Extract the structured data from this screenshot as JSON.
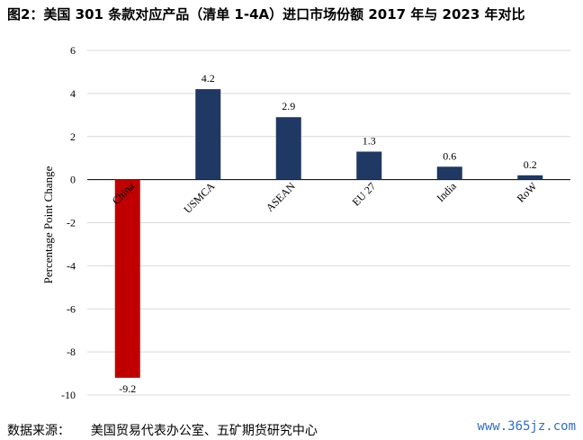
{
  "title": "图2：美国 301 条款对应产品（清单 1-4A）进口市场份额 2017 年与 2023 年对比",
  "source_label": "数据来源：",
  "source_text": "美国贸易代表办公室、五矿期货研究中心",
  "watermark": "www.365jz.com",
  "chart_data": {
    "type": "bar",
    "title": "",
    "xlabel": "",
    "ylabel": "Percentage Point Change",
    "ylim": [
      -10,
      6
    ],
    "yticks": [
      -10,
      -8,
      -6,
      -4,
      -2,
      0,
      2,
      4,
      6
    ],
    "grid": true,
    "categories": [
      "China",
      "USMCA",
      "ASEAN",
      "EU 27",
      "India",
      "RoW"
    ],
    "values": [
      -9.2,
      4.2,
      2.9,
      1.3,
      0.6,
      0.2
    ],
    "value_labels": [
      "-9.2",
      "4.2",
      "2.9",
      "1.3",
      "0.6",
      "0.2"
    ],
    "colors": {
      "negative": "#c00000",
      "positive": "#1f3864",
      "grid": "#d9d9d9",
      "axis": "#000000"
    }
  }
}
